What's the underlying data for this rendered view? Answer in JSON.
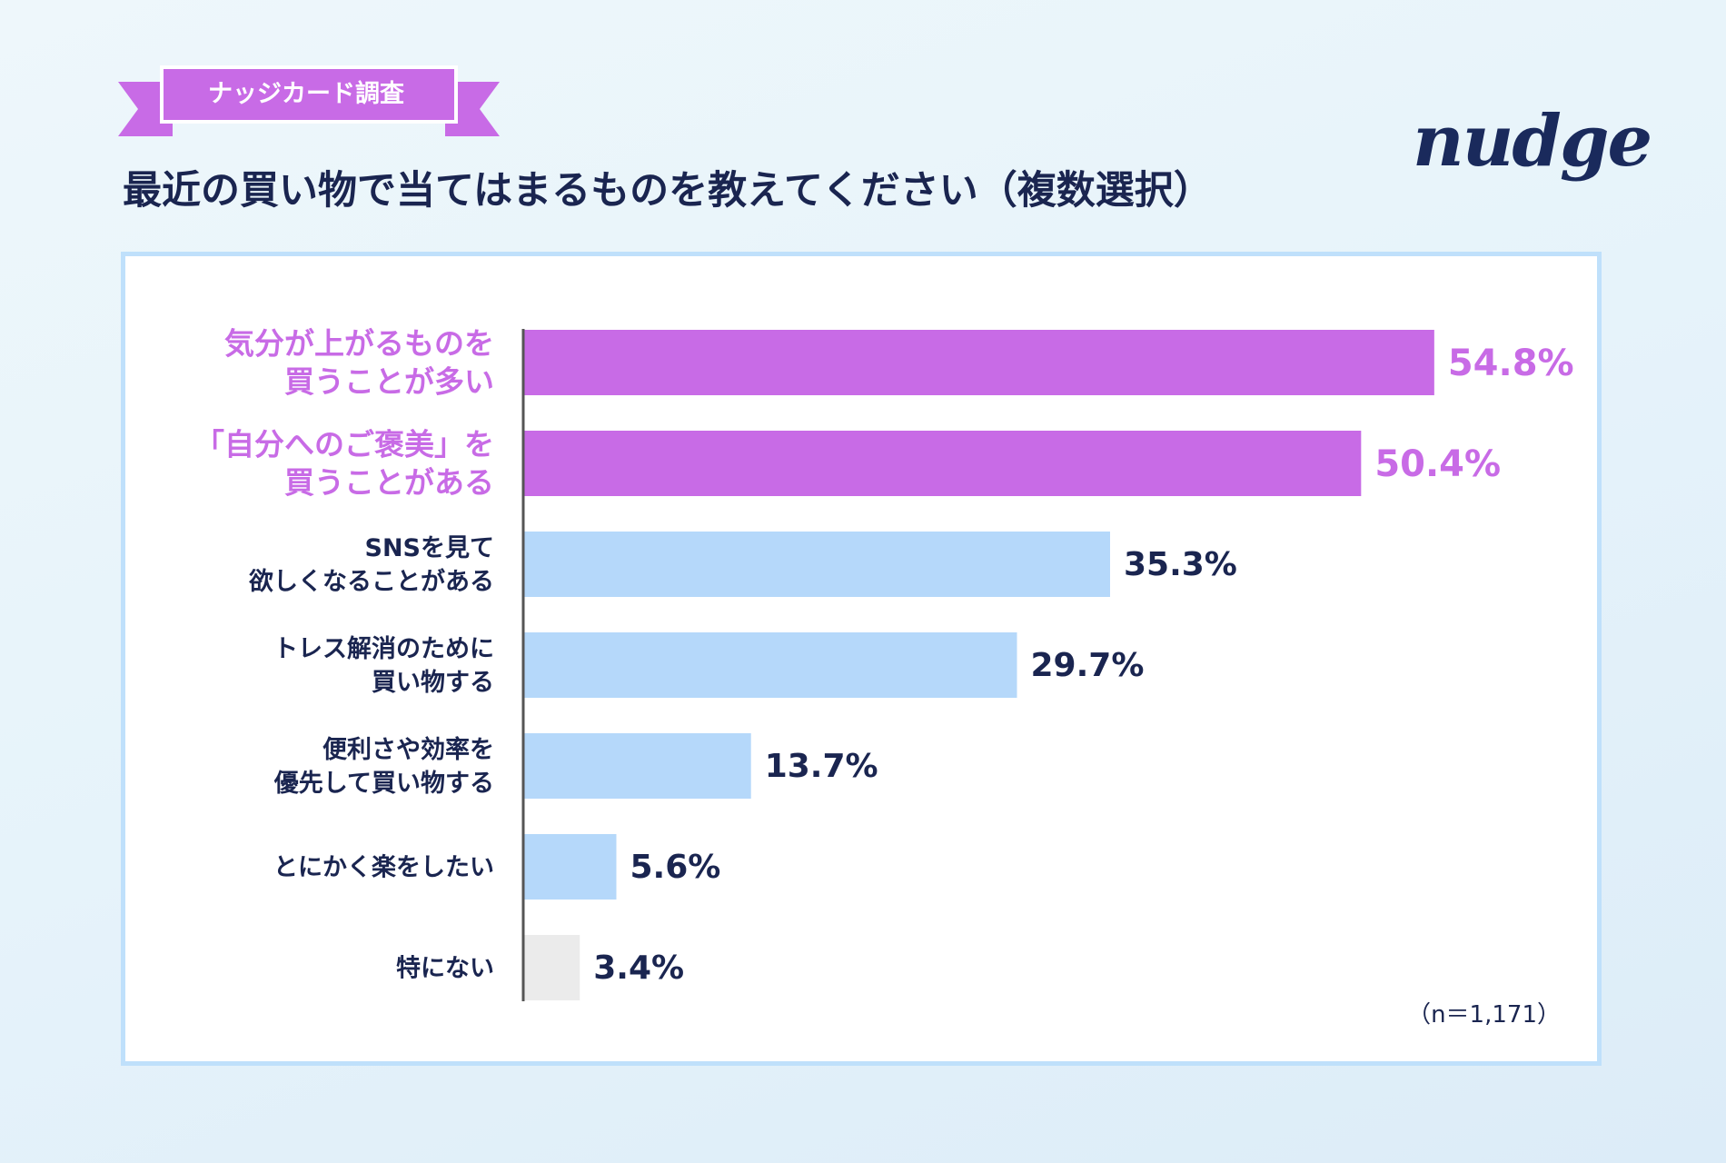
{
  "badge": {
    "text": "ナッジカード調査"
  },
  "logo": {
    "text": "nudge"
  },
  "title": "最近の買い物で当てはまるものを教えてください（複数選択）",
  "note": "（n＝1,171）",
  "colors": {
    "highlight": "#c86be6",
    "normal": "#b5d8fa",
    "none": "#ebebeb",
    "text_dark": "#1a2550",
    "ribbon": "#c86be6"
  },
  "chart_data": {
    "type": "bar",
    "orientation": "horizontal",
    "categories": [
      [
        "気分が上がるものを",
        "買うことが多い"
      ],
      [
        "「自分へのご褒美」を",
        "買うことがある"
      ],
      [
        "SNSを見て",
        "欲しくなることがある"
      ],
      [
        "トレス解消のために",
        "買い物する"
      ],
      [
        "便利さや効率を",
        "優先して買い物する"
      ],
      [
        "とにかく楽をしたい"
      ],
      [
        "特にない"
      ]
    ],
    "values": [
      54.8,
      50.4,
      35.3,
      29.7,
      13.7,
      5.6,
      3.4
    ],
    "labels": [
      "54.8%",
      "50.4%",
      "35.3%",
      "29.7%",
      "13.7%",
      "5.6%",
      "3.4%"
    ],
    "highlight": [
      true,
      true,
      false,
      false,
      false,
      false,
      false
    ],
    "xlim": [
      0,
      60
    ]
  }
}
